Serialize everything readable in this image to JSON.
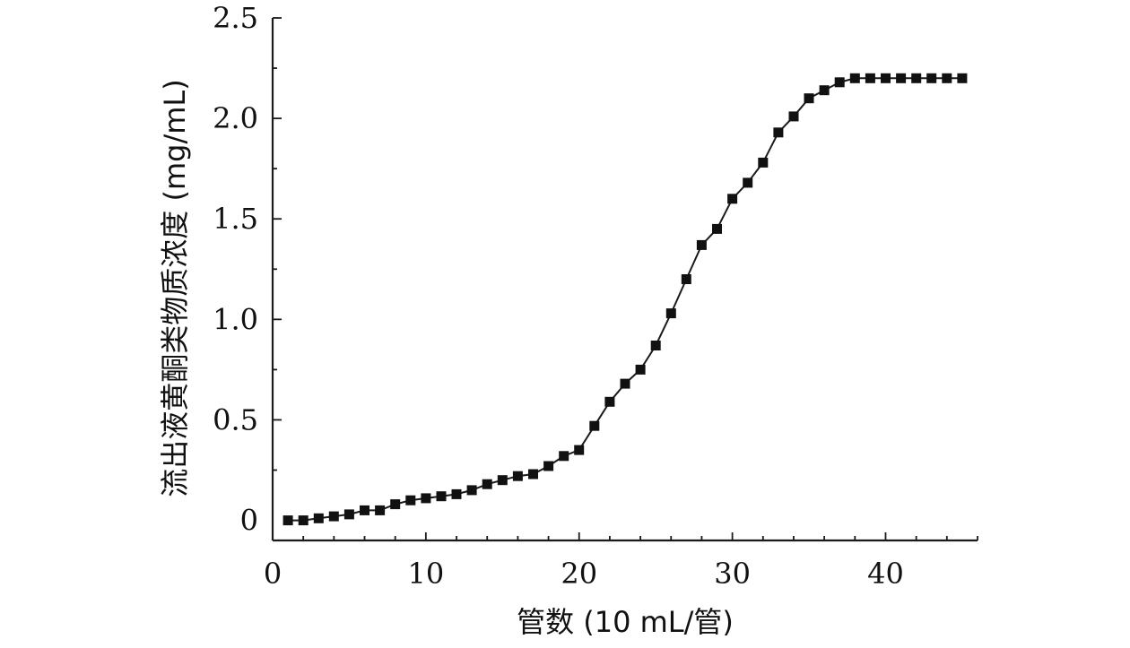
{
  "chart_data": {
    "type": "line",
    "title": "",
    "xlabel": "管数 (10 mL/管)",
    "ylabel": "流出液黄酮类物质浓度 (mg/mL)",
    "xlim": [
      0,
      46
    ],
    "ylim": [
      -0.1,
      2.5
    ],
    "xticks": [
      0,
      10,
      20,
      30,
      40
    ],
    "xtick_labels": [
      "0",
      "10",
      "20",
      "30",
      "40"
    ],
    "yticks": [
      0,
      0.5,
      1.0,
      1.5,
      2.0,
      2.5
    ],
    "ytick_labels": [
      "0",
      "0.5",
      "1.0",
      "1.5",
      "2.0",
      "2.5"
    ],
    "grid": false,
    "colors": {
      "line": "#1a1a1a",
      "marker": "#111111",
      "axis": "#1a1a1a"
    },
    "series": [
      {
        "marker": "square",
        "x": [
          1,
          2,
          3,
          4,
          5,
          6,
          7,
          8,
          9,
          10,
          11,
          12,
          13,
          14,
          15,
          16,
          17,
          18,
          19,
          20,
          21,
          22,
          23,
          24,
          25,
          26,
          27,
          28,
          29,
          30,
          31,
          32,
          33,
          34,
          35,
          36,
          37,
          38,
          39,
          40,
          41,
          42,
          43,
          44,
          45
        ],
        "y": [
          0,
          0,
          0.01,
          0.02,
          0.03,
          0.05,
          0.05,
          0.08,
          0.1,
          0.11,
          0.12,
          0.13,
          0.15,
          0.18,
          0.2,
          0.22,
          0.23,
          0.27,
          0.32,
          0.35,
          0.47,
          0.59,
          0.68,
          0.75,
          0.87,
          1.03,
          1.2,
          1.37,
          1.45,
          1.6,
          1.68,
          1.78,
          1.93,
          2.01,
          2.1,
          2.14,
          2.18,
          2.2,
          2.2,
          2.2,
          2.2,
          2.2,
          2.2,
          2.2,
          2.2
        ]
      }
    ]
  }
}
